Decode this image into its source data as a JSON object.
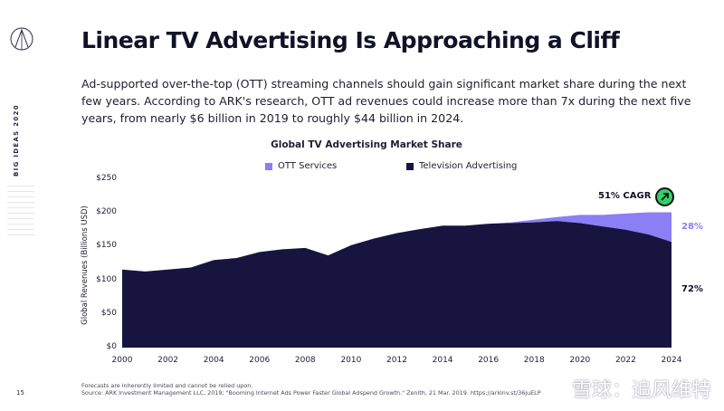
{
  "sidebar": {
    "vertical_label": "BIG IDEAS 2020",
    "page_number": "15",
    "logo_icon": "ark-logo-icon"
  },
  "header": {
    "title": "Linear TV Advertising Is Approaching a Cliff",
    "description": "Ad-supported over-the-top (OTT) streaming channels should gain significant market share during the next few years. According to ARK's research, OTT ad revenues could increase more than 7x during the next five years, from nearly $6 billion in 2019 to roughly $44 billion in 2024."
  },
  "chart_data": {
    "type": "area",
    "title": "Global TV Advertising Market Share",
    "xlabel": "",
    "ylabel": "Global Revenues (Billions USD)",
    "ylim": [
      0,
      250
    ],
    "yticks": [
      "$0",
      "$50",
      "$100",
      "$150",
      "$200",
      "$250"
    ],
    "xticks": [
      "2000",
      "2002",
      "2004",
      "2006",
      "2008",
      "2010",
      "2012",
      "2014",
      "2016",
      "2018",
      "2020",
      "2022",
      "2024"
    ],
    "grid": false,
    "legend_position": "top",
    "colors": {
      "ott": "#8c7ef5",
      "tv": "#17153f"
    },
    "x": [
      2000,
      2001,
      2002,
      2003,
      2004,
      2005,
      2006,
      2007,
      2008,
      2009,
      2010,
      2011,
      2012,
      2013,
      2014,
      2015,
      2016,
      2017,
      2018,
      2019,
      2020,
      2021,
      2022,
      2023,
      2024
    ],
    "series": [
      {
        "name": "Television Advertising",
        "values": [
          116,
          113,
          116,
          119,
          130,
          133,
          142,
          146,
          148,
          137,
          152,
          162,
          170,
          176,
          181,
          181,
          184,
          185,
          186,
          188,
          185,
          180,
          175,
          168,
          157
        ]
      },
      {
        "name": "OTT Services",
        "values": [
          0,
          0,
          0,
          0,
          0,
          0,
          0,
          0,
          0,
          0,
          0,
          0,
          0,
          0,
          0,
          0,
          0,
          1,
          4,
          6,
          12,
          17,
          24,
          33,
          44
        ]
      }
    ],
    "annotations": {
      "cagr": "51% CAGR",
      "ott_share": "28%",
      "tv_share": "72%"
    }
  },
  "footnote": {
    "line1": "Forecasts are inherently limited and cannot be relied upon.",
    "line2": "Source: ARK Investment Management LLC, 2019; \"Booming Internet Ads Power Faster Global Adspend Growth.\" Zenith, 21 Mar. 2019. https://arkinv.st/36juELP"
  },
  "watermark": "雪球：追风维特"
}
